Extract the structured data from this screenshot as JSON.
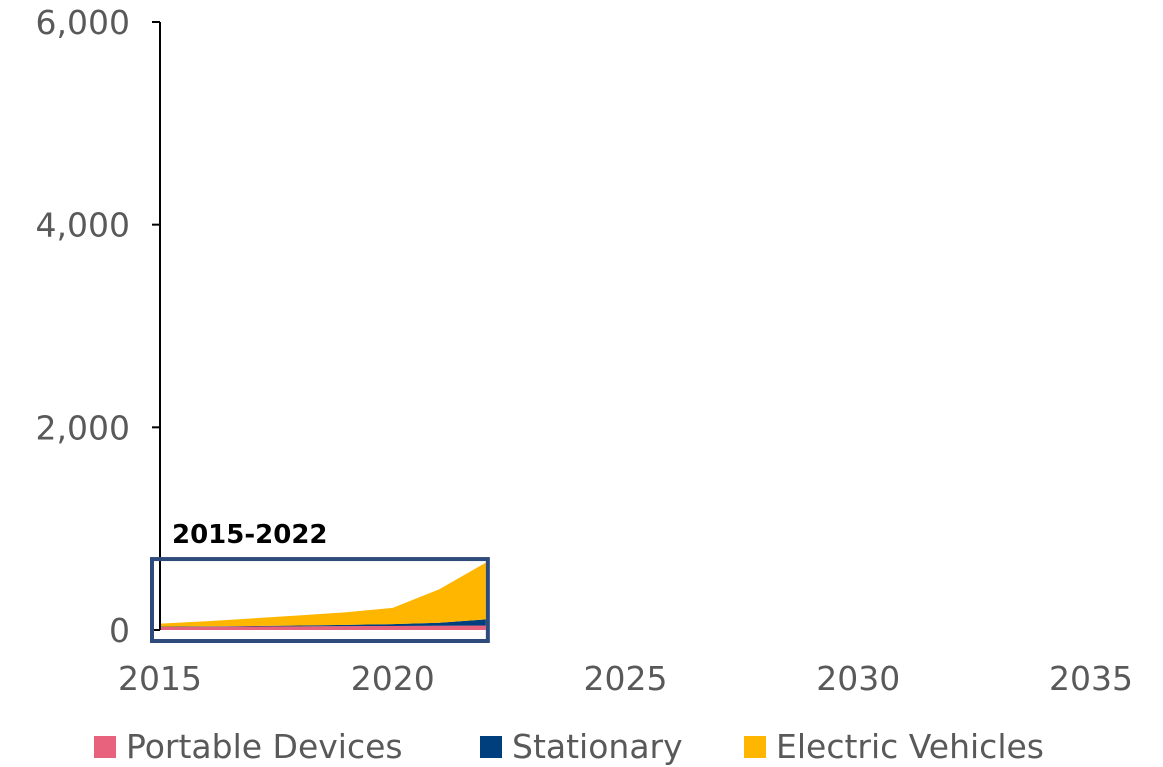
{
  "chart_data": {
    "type": "area",
    "stacked": true,
    "x": [
      2015,
      2016,
      2017,
      2018,
      2019,
      2020,
      2021,
      2022
    ],
    "series": [
      {
        "name": "Portable Devices",
        "color": "#E8627D",
        "values": [
          30,
          32,
          34,
          36,
          38,
          40,
          42,
          45
        ]
      },
      {
        "name": "Stationary",
        "color": "#003F7D",
        "values": [
          3,
          4,
          6,
          8,
          12,
          18,
          30,
          60
        ]
      },
      {
        "name": "Electric Vehicles",
        "color": "#FFB600",
        "values": [
          30,
          50,
          75,
          100,
          125,
          160,
          330,
          560
        ]
      }
    ],
    "xlim": [
      2015,
      2035
    ],
    "ylim": [
      0,
      6000
    ],
    "xticks": [
      "2015",
      "2020",
      "2025",
      "2030",
      "2035"
    ],
    "yticks": [
      "0",
      "2,000",
      "4,000",
      "6,000"
    ],
    "grid": false,
    "legend_position": "bottom",
    "annotation": {
      "text": "2015-2022",
      "box_color": "#2F4B7C"
    }
  }
}
